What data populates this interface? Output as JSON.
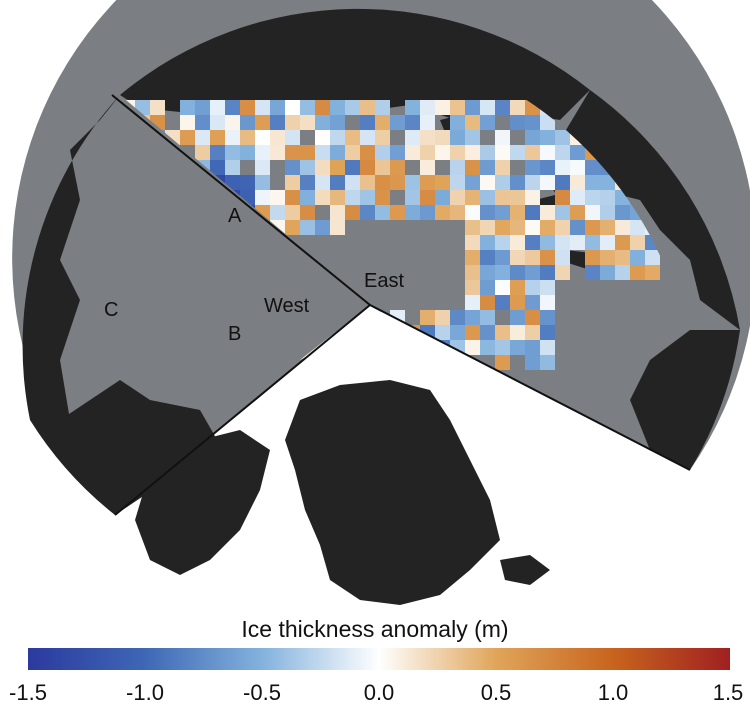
{
  "map": {
    "region_labels": {
      "A": "A",
      "B": "B",
      "C": "C",
      "west": "West",
      "east": "East"
    },
    "colors": {
      "ocean_no_data": "#7b7e82",
      "land": "#232323",
      "background": "#ffffff"
    }
  },
  "colorbar": {
    "title": "Ice thickness anomaly (m)",
    "min": -1.5,
    "max": 1.5,
    "ticks": [
      "-1.5",
      "-1.0",
      "-0.5",
      "0.0",
      "0.5",
      "1.0",
      "1.5"
    ],
    "stops": [
      "#2b3a9e",
      "#3f67b5",
      "#83b2dd",
      "#ffffff",
      "#e0a55a",
      "#c8641e",
      "#a02020"
    ]
  }
}
